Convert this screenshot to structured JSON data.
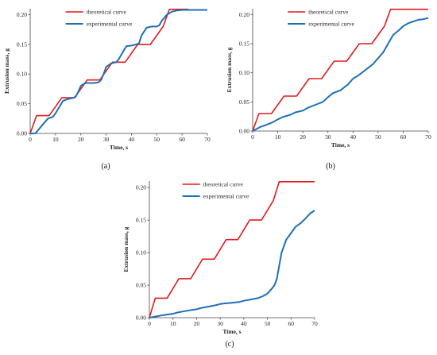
{
  "chart_data": [
    {
      "type": "line",
      "panel_label": "(a)",
      "xlabel": "Time, s",
      "ylabel": "Extrusion mass, g",
      "xlim": [
        0,
        70
      ],
      "ylim": [
        0,
        0.21
      ],
      "xticks": [
        "0",
        "10",
        "20",
        "30",
        "40",
        "50",
        "60",
        "70"
      ],
      "yticks": [
        "0.00",
        "0.05",
        "0.10",
        "0.15",
        "0.20"
      ],
      "legend_position": "top-center",
      "series": [
        {
          "name": "theoretical curve",
          "color": "#e31a1c",
          "x": [
            0,
            2.5,
            7.5,
            12.5,
            17.5,
            22.5,
            27.5,
            32.5,
            37.5,
            42.5,
            47.5,
            52.5,
            55,
            62.5
          ],
          "y": [
            0,
            0.03,
            0.03,
            0.06,
            0.06,
            0.09,
            0.09,
            0.12,
            0.12,
            0.15,
            0.15,
            0.18,
            0.209,
            0.209
          ]
        },
        {
          "name": "experimental curve",
          "color": "#1f6fb5",
          "x": [
            0,
            2,
            3,
            5,
            7,
            9,
            10,
            12,
            13,
            15,
            17,
            18,
            19,
            20,
            21,
            22,
            25,
            27,
            28,
            29,
            30,
            31,
            32,
            34,
            35,
            37,
            38,
            40,
            42,
            43,
            44,
            46,
            48,
            50,
            51,
            52,
            54,
            56,
            58,
            60,
            62,
            64,
            66,
            70
          ],
          "y": [
            0,
            0,
            0.005,
            0.015,
            0.025,
            0.028,
            0.034,
            0.048,
            0.055,
            0.058,
            0.06,
            0.062,
            0.07,
            0.08,
            0.083,
            0.085,
            0.085,
            0.086,
            0.09,
            0.1,
            0.112,
            0.115,
            0.118,
            0.12,
            0.125,
            0.14,
            0.147,
            0.148,
            0.15,
            0.152,
            0.165,
            0.178,
            0.18,
            0.18,
            0.182,
            0.19,
            0.2,
            0.205,
            0.207,
            0.208,
            0.208,
            0.208,
            0.208,
            0.208
          ]
        }
      ]
    },
    {
      "type": "line",
      "panel_label": "(b)",
      "xlabel": "Time, s",
      "ylabel": "Extrusion mass, g",
      "xlim": [
        0,
        70
      ],
      "ylim": [
        0,
        0.21
      ],
      "xticks": [
        "0",
        "10",
        "20",
        "30",
        "40",
        "50",
        "60",
        "70"
      ],
      "yticks": [
        "0.00",
        "0.05",
        "0.10",
        "0.15",
        "0.20"
      ],
      "legend_position": "top-center",
      "series": [
        {
          "name": "theoretical curve",
          "color": "#e31a1c",
          "x": [
            0,
            2.5,
            7.5,
            12.5,
            17.5,
            22.5,
            27.5,
            32.5,
            37.5,
            42.5,
            47.5,
            52.5,
            55,
            70
          ],
          "y": [
            0,
            0.03,
            0.03,
            0.06,
            0.06,
            0.09,
            0.09,
            0.12,
            0.12,
            0.15,
            0.15,
            0.18,
            0.209,
            0.209
          ]
        },
        {
          "name": "experimental curve",
          "color": "#1f6fb5",
          "x": [
            0,
            3,
            5,
            8,
            10,
            12,
            15,
            17,
            20,
            22,
            25,
            28,
            30,
            32,
            35,
            38,
            40,
            42,
            45,
            48,
            50,
            52,
            54,
            56,
            58,
            60,
            62,
            64,
            66,
            68,
            70
          ],
          "y": [
            0,
            0.007,
            0.01,
            0.015,
            0.02,
            0.024,
            0.028,
            0.032,
            0.035,
            0.04,
            0.045,
            0.05,
            0.058,
            0.065,
            0.07,
            0.08,
            0.09,
            0.095,
            0.105,
            0.115,
            0.125,
            0.135,
            0.15,
            0.165,
            0.172,
            0.18,
            0.185,
            0.188,
            0.191,
            0.192,
            0.194
          ]
        }
      ]
    },
    {
      "type": "line",
      "panel_label": "(c)",
      "xlabel": "Time, s",
      "ylabel": "Extrusion mass, g",
      "xlim": [
        0,
        70
      ],
      "ylim": [
        0,
        0.21
      ],
      "xticks": [
        "0",
        "10",
        "20",
        "30",
        "40",
        "50",
        "60",
        "70"
      ],
      "yticks": [
        "0.00",
        "0.05",
        "0.10",
        "0.15",
        "0.20"
      ],
      "legend_position": "top-center",
      "series": [
        {
          "name": "theoretical curve",
          "color": "#e31a1c",
          "x": [
            0,
            2.5,
            7.5,
            12.5,
            17.5,
            22.5,
            27.5,
            32.5,
            37.5,
            42.5,
            47.5,
            52.5,
            55,
            70
          ],
          "y": [
            0,
            0.03,
            0.03,
            0.06,
            0.06,
            0.09,
            0.09,
            0.12,
            0.12,
            0.15,
            0.15,
            0.18,
            0.209,
            0.209
          ]
        },
        {
          "name": "experimental curve",
          "color": "#1f6fb5",
          "x": [
            0,
            3,
            6,
            8,
            10,
            12,
            15,
            18,
            20,
            22,
            25,
            28,
            30,
            32,
            35,
            38,
            40,
            43,
            46,
            48,
            50,
            52,
            53,
            54,
            55,
            56,
            58,
            60,
            62,
            64,
            66,
            68,
            70
          ],
          "y": [
            0,
            0.002,
            0.004,
            0.005,
            0.006,
            0.008,
            0.01,
            0.012,
            0.013,
            0.015,
            0.017,
            0.019,
            0.021,
            0.022,
            0.023,
            0.024,
            0.026,
            0.028,
            0.03,
            0.033,
            0.037,
            0.045,
            0.05,
            0.06,
            0.08,
            0.1,
            0.12,
            0.13,
            0.14,
            0.145,
            0.152,
            0.16,
            0.165
          ]
        }
      ]
    }
  ]
}
